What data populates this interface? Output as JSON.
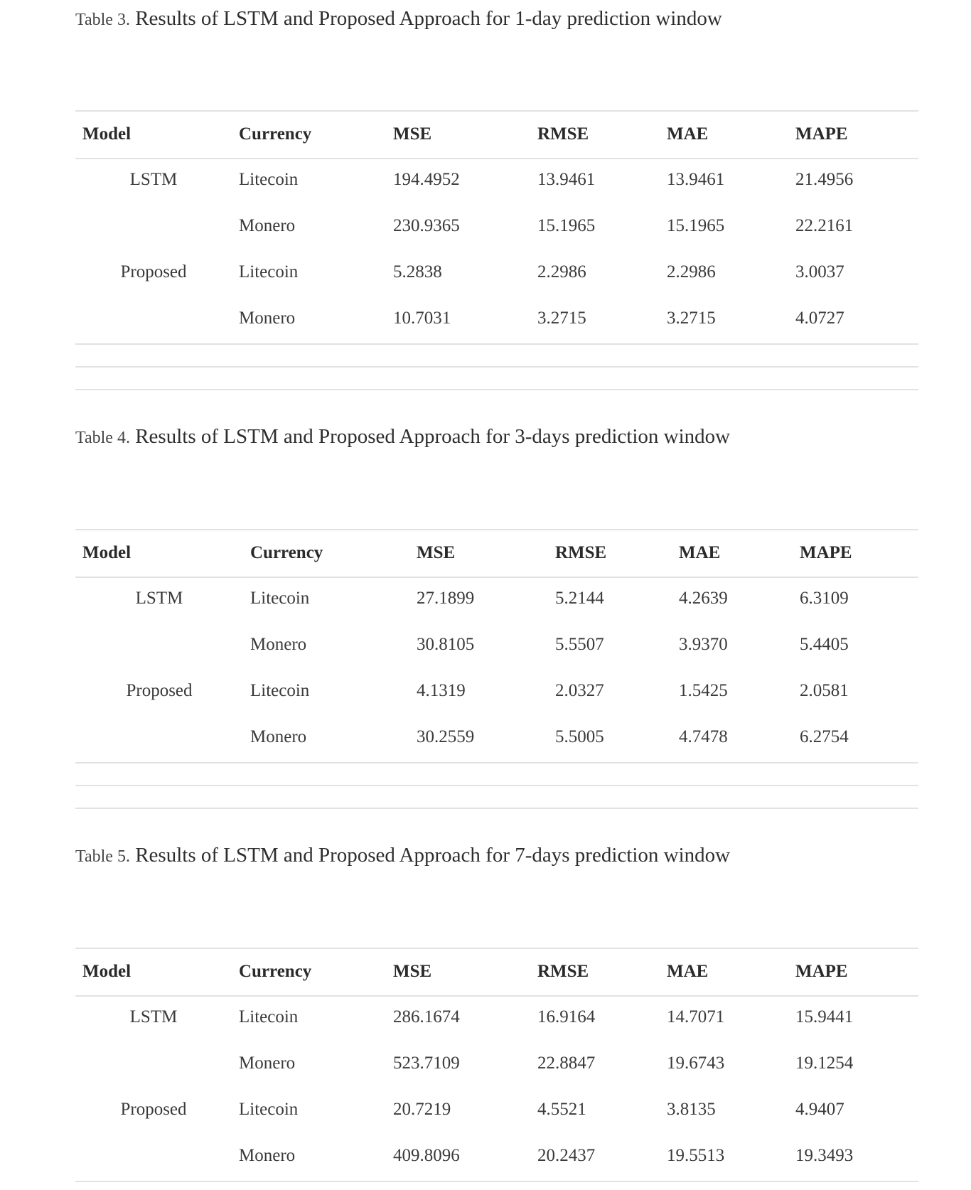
{
  "columns": [
    "Model",
    "Currency",
    "MSE",
    "RMSE",
    "MAE",
    "MAPE"
  ],
  "tables": [
    {
      "label": "Table 3.",
      "title": "Results of LSTM and Proposed Approach for 1-day prediction window",
      "rows": [
        {
          "model": "LSTM",
          "currency": "Litecoin",
          "mse": "194.4952",
          "rmse": "13.9461",
          "mae": "13.9461",
          "mape": "21.4956"
        },
        {
          "model": "",
          "currency": "Monero",
          "mse": "230.9365",
          "rmse": "15.1965",
          "mae": "15.1965",
          "mape": "22.2161"
        },
        {
          "model": "Proposed",
          "currency": "Litecoin",
          "mse": "5.2838",
          "rmse": "2.2986",
          "mae": "2.2986",
          "mape": "3.0037"
        },
        {
          "model": "",
          "currency": "Monero",
          "mse": "10.7031",
          "rmse": "3.2715",
          "mae": "3.2715",
          "mape": "4.0727"
        }
      ]
    },
    {
      "label": "Table 4.",
      "title": "Results of LSTM and Proposed Approach for 3-days prediction window",
      "rows": [
        {
          "model": "LSTM",
          "currency": "Litecoin",
          "mse": "27.1899",
          "rmse": "5.2144",
          "mae": "4.2639",
          "mape": "6.3109"
        },
        {
          "model": "",
          "currency": "Monero",
          "mse": "30.8105",
          "rmse": "5.5507",
          "mae": "3.9370",
          "mape": "5.4405"
        },
        {
          "model": "Proposed",
          "currency": "Litecoin",
          "mse": "4.1319",
          "rmse": "2.0327",
          "mae": "1.5425",
          "mape": "2.0581"
        },
        {
          "model": "",
          "currency": "Monero",
          "mse": "30.2559",
          "rmse": "5.5005",
          "mae": "4.7478",
          "mape": "6.2754"
        }
      ]
    },
    {
      "label": "Table 5.",
      "title": "Results of LSTM and Proposed Approach for 7-days prediction window",
      "rows": [
        {
          "model": "LSTM",
          "currency": "Litecoin",
          "mse": "286.1674",
          "rmse": "16.9164",
          "mae": "14.7071",
          "mape": "15.9441"
        },
        {
          "model": "",
          "currency": "Monero",
          "mse": "523.7109",
          "rmse": "22.8847",
          "mae": "19.6743",
          "mape": "19.1254"
        },
        {
          "model": "Proposed",
          "currency": "Litecoin",
          "mse": "20.7219",
          "rmse": "4.5521",
          "mae": "3.8135",
          "mape": "4.9407"
        },
        {
          "model": "",
          "currency": "Monero",
          "mse": "409.8096",
          "rmse": "20.2437",
          "mae": "19.5513",
          "mape": "19.3493"
        }
      ]
    }
  ]
}
